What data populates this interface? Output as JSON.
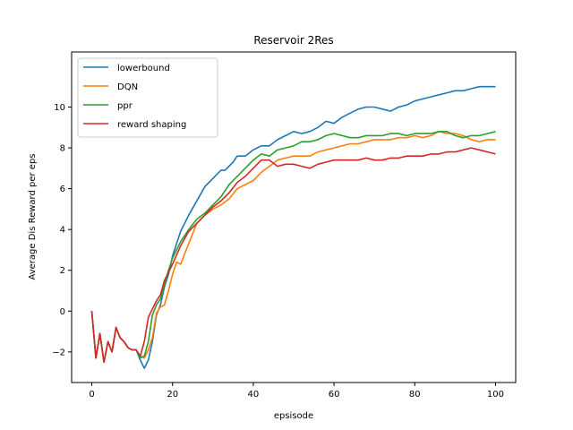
{
  "chart_data": {
    "type": "line",
    "title": "Reservoir 2Res",
    "xlabel": "epsisode",
    "ylabel": "Average Dis Reward per eps",
    "xlim": [
      -5,
      105
    ],
    "ylim": [
      -3.5,
      12.7
    ],
    "xticks": [
      0,
      20,
      40,
      60,
      80,
      100
    ],
    "yticks": [
      -2,
      0,
      2,
      4,
      6,
      8,
      10
    ],
    "grid": false,
    "legend_position": "top-left",
    "series": [
      {
        "name": "lowerbound",
        "color": "#1f77b4",
        "x": [
          0,
          1,
          2,
          3,
          4,
          5,
          6,
          7,
          8,
          9,
          10,
          11,
          12,
          13,
          14,
          15,
          16,
          17,
          18,
          19,
          20,
          22,
          24,
          26,
          28,
          30,
          32,
          33,
          35,
          36,
          38,
          40,
          42,
          44,
          46,
          48,
          50,
          52,
          54,
          56,
          58,
          60,
          62,
          64,
          66,
          68,
          70,
          72,
          74,
          76,
          78,
          80,
          82,
          84,
          86,
          88,
          90,
          92,
          94,
          96,
          98,
          100
        ],
        "y": [
          0,
          -2.3,
          -1.1,
          -2.5,
          -1.5,
          -2.0,
          -0.8,
          -1.3,
          -1.5,
          -1.8,
          -1.9,
          -1.9,
          -2.4,
          -2.8,
          -2.4,
          -1.5,
          -0.2,
          0.3,
          1.2,
          1.8,
          2.7,
          3.9,
          4.7,
          5.4,
          6.1,
          6.5,
          6.9,
          6.9,
          7.3,
          7.6,
          7.6,
          7.9,
          8.1,
          8.1,
          8.4,
          8.6,
          8.8,
          8.7,
          8.8,
          9.0,
          9.3,
          9.2,
          9.5,
          9.7,
          9.9,
          10.0,
          10.0,
          9.9,
          9.8,
          10.0,
          10.1,
          10.3,
          10.4,
          10.5,
          10.6,
          10.7,
          10.8,
          10.8,
          10.9,
          11.0,
          11.0,
          11.0
        ]
      },
      {
        "name": "DQN",
        "color": "#ff7f0e",
        "x": [
          0,
          1,
          2,
          3,
          4,
          5,
          6,
          7,
          8,
          9,
          10,
          11,
          12,
          13,
          14,
          15,
          16,
          17,
          18,
          19,
          20,
          21,
          22,
          24,
          26,
          28,
          30,
          32,
          34,
          36,
          38,
          40,
          42,
          44,
          46,
          48,
          50,
          52,
          54,
          56,
          58,
          60,
          62,
          64,
          66,
          68,
          70,
          72,
          74,
          76,
          78,
          80,
          82,
          84,
          86,
          88,
          90,
          92,
          94,
          96,
          98,
          100
        ],
        "y": [
          0,
          -2.3,
          -1.1,
          -2.5,
          -1.5,
          -2.0,
          -0.8,
          -1.3,
          -1.5,
          -1.8,
          -1.9,
          -1.9,
          -2.2,
          -2.3,
          -1.9,
          -1.3,
          -0.1,
          0.2,
          0.3,
          1.0,
          1.8,
          2.4,
          2.3,
          3.3,
          4.3,
          4.7,
          5.0,
          5.2,
          5.5,
          6.0,
          6.2,
          6.4,
          6.8,
          7.1,
          7.4,
          7.5,
          7.6,
          7.6,
          7.6,
          7.8,
          7.9,
          8.0,
          8.1,
          8.2,
          8.2,
          8.3,
          8.4,
          8.4,
          8.4,
          8.5,
          8.5,
          8.6,
          8.5,
          8.6,
          8.8,
          8.7,
          8.7,
          8.6,
          8.4,
          8.3,
          8.4,
          8.4
        ]
      },
      {
        "name": "ppr",
        "color": "#2ca02c",
        "x": [
          0,
          1,
          2,
          3,
          4,
          5,
          6,
          7,
          8,
          9,
          10,
          11,
          12,
          13,
          14,
          15,
          16,
          17,
          18,
          19,
          20,
          22,
          24,
          26,
          28,
          30,
          32,
          34,
          36,
          38,
          40,
          42,
          44,
          46,
          48,
          50,
          52,
          54,
          56,
          58,
          60,
          62,
          64,
          66,
          68,
          70,
          72,
          74,
          76,
          78,
          80,
          82,
          84,
          86,
          88,
          90,
          92,
          94,
          96,
          98,
          100
        ],
        "y": [
          0,
          -2.3,
          -1.1,
          -2.5,
          -1.5,
          -2.0,
          -0.8,
          -1.3,
          -1.5,
          -1.8,
          -1.9,
          -1.9,
          -2.3,
          -2.2,
          -1.5,
          -0.2,
          0.3,
          0.6,
          1.3,
          2.0,
          2.6,
          3.4,
          4.0,
          4.5,
          4.8,
          5.2,
          5.6,
          6.2,
          6.6,
          7.0,
          7.4,
          7.7,
          7.6,
          7.9,
          8.0,
          8.1,
          8.3,
          8.3,
          8.4,
          8.6,
          8.7,
          8.6,
          8.5,
          8.5,
          8.6,
          8.6,
          8.6,
          8.7,
          8.7,
          8.6,
          8.7,
          8.7,
          8.7,
          8.8,
          8.8,
          8.6,
          8.5,
          8.6,
          8.6,
          8.7,
          8.8
        ]
      },
      {
        "name": "reward shaping",
        "color": "#d62728",
        "x": [
          0,
          1,
          2,
          3,
          4,
          5,
          6,
          7,
          8,
          9,
          10,
          11,
          12,
          13,
          14,
          15,
          16,
          17,
          18,
          19,
          20,
          22,
          24,
          26,
          28,
          30,
          32,
          34,
          36,
          38,
          40,
          42,
          44,
          46,
          48,
          50,
          52,
          54,
          56,
          58,
          60,
          62,
          64,
          66,
          68,
          70,
          72,
          74,
          76,
          78,
          80,
          82,
          84,
          86,
          88,
          90,
          92,
          94,
          96,
          98,
          100
        ],
        "y": [
          0,
          -2.3,
          -1.1,
          -2.5,
          -1.5,
          -2.0,
          -0.8,
          -1.3,
          -1.5,
          -1.8,
          -1.9,
          -1.9,
          -2.2,
          -1.5,
          -0.3,
          0.1,
          0.5,
          0.8,
          1.5,
          1.9,
          2.3,
          3.2,
          3.9,
          4.3,
          4.7,
          5.1,
          5.4,
          5.8,
          6.3,
          6.6,
          7.0,
          7.4,
          7.4,
          7.1,
          7.2,
          7.2,
          7.1,
          7.0,
          7.2,
          7.3,
          7.4,
          7.4,
          7.4,
          7.4,
          7.5,
          7.4,
          7.4,
          7.5,
          7.5,
          7.6,
          7.6,
          7.6,
          7.7,
          7.7,
          7.8,
          7.8,
          7.9,
          8.0,
          7.9,
          7.8,
          7.7
        ]
      }
    ]
  }
}
